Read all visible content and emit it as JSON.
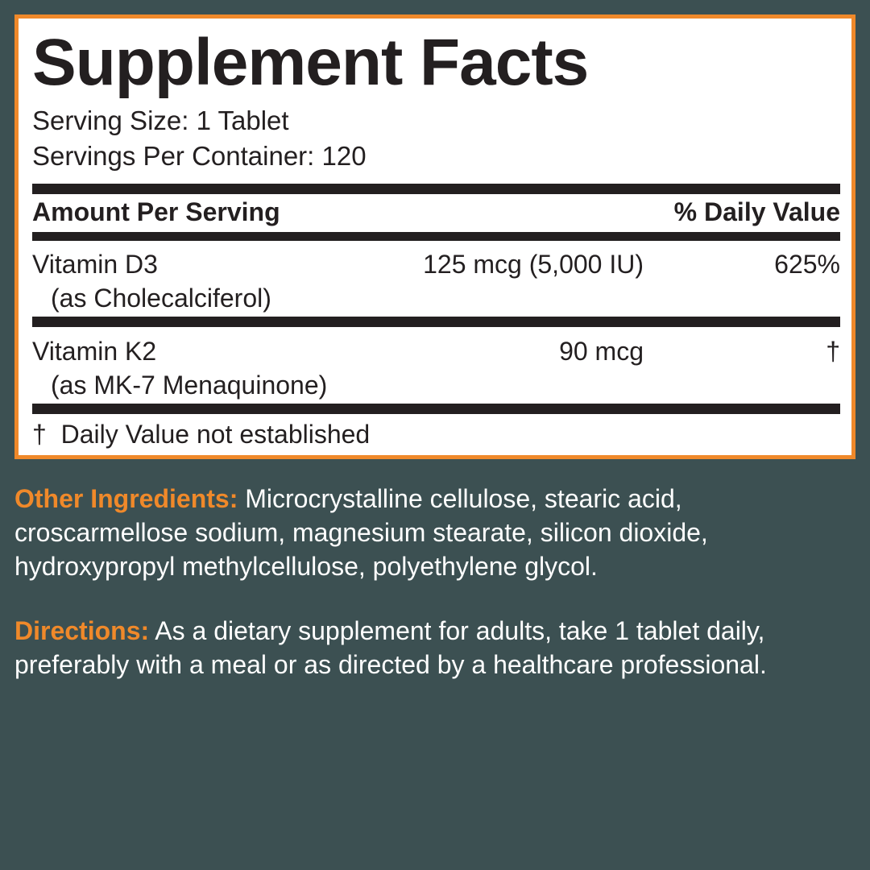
{
  "facts": {
    "title": "Supplement Facts",
    "serving_size": "Serving Size: 1 Tablet",
    "servings_per_container": "Servings Per Container: 120",
    "header": {
      "amount": "Amount Per Serving",
      "daily_value": "% Daily Value"
    },
    "rows": [
      {
        "name": "Vitamin D3",
        "form": "(as Cholecalciferol)",
        "amount": "125 mcg (5,000 IU)",
        "daily_value": "625%"
      },
      {
        "name": "Vitamin K2",
        "form": "(as MK-7 Menaquinone)",
        "amount": "90 mcg",
        "daily_value": "†"
      }
    ],
    "footnote": "†  Daily Value not established"
  },
  "ingredients": {
    "label": "Other Ingredients:",
    "lines": [
      " Microcrystalline cellulose, stearic acid,",
      "croscarmellose sodium, magnesium stearate, silicon dioxide,",
      "hydroxypropyl methylcellulose, polyethylene glycol."
    ]
  },
  "directions": {
    "label": "Directions:",
    "lines": [
      " As a dietary supplement for adults, take 1 tablet daily,",
      "preferably with a meal or as directed by a healthcare professional."
    ]
  }
}
